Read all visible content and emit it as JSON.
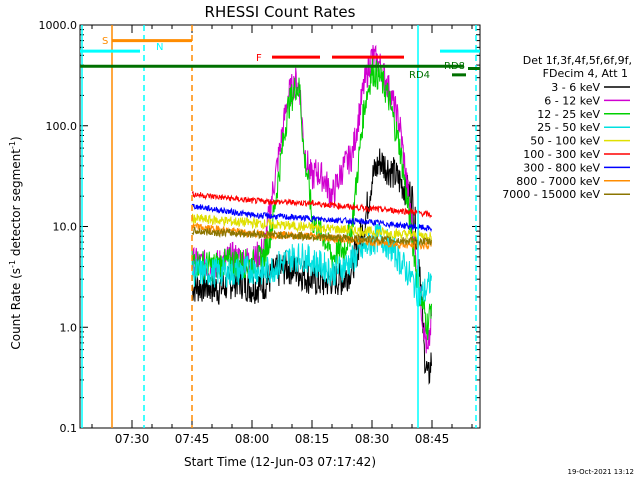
{
  "chart_data": {
    "type": "line",
    "title": "RHESSI Count Rates",
    "xlabel": "Start Time (12-Jun-03 07:17:42)",
    "ylabel_main": "Count Rate (s",
    "ylabel_sup1": "-1",
    "ylabel_mid": " detector segment",
    "ylabel_sup2": "-1",
    "ylabel_end": ")",
    "yscale": "log",
    "ylim": [
      0.1,
      1000
    ],
    "xlim_minutes": [
      17,
      117
    ],
    "x_ticks": [
      {
        "label": "07:30",
        "min": 30
      },
      {
        "label": "07:45",
        "min": 45
      },
      {
        "label": "08:00",
        "min": 60
      },
      {
        "label": "08:15",
        "min": 75
      },
      {
        "label": "08:30",
        "min": 90
      },
      {
        "label": "08:45",
        "min": 105
      }
    ],
    "y_ticks": [
      {
        "label": "1000.0",
        "v": 1000
      },
      {
        "label": "100.0",
        "v": 100
      },
      {
        "label": "10.0",
        "v": 10
      },
      {
        "label": "1.0",
        "v": 1
      },
      {
        "label": "0.1",
        "v": 0.1
      }
    ],
    "legend_header": [
      "Det 1f,3f,4f,5f,6f,9f,",
      "FDecim 4, Att 1"
    ],
    "series": [
      {
        "name": "3 - 6 keV",
        "color": "#000000",
        "x": [
          45,
          48,
          52,
          56,
          60,
          63,
          66,
          69,
          72,
          75,
          78,
          80,
          83,
          85,
          88,
          90,
          92,
          95,
          97,
          100,
          102,
          103,
          104,
          105
        ],
        "y": [
          2.5,
          2.6,
          2.4,
          3.0,
          2.5,
          2.7,
          3.5,
          4,
          3.5,
          3,
          2.8,
          3,
          3,
          4,
          10,
          30,
          45,
          35,
          28,
          20,
          4,
          0.6,
          0.3,
          0.5
        ]
      },
      {
        "name": "6 - 12 keV",
        "color": "#d000d0",
        "x": [
          45,
          50,
          55,
          60,
          63,
          65,
          67,
          69,
          71,
          72,
          73,
          74,
          75,
          76,
          78,
          80,
          83,
          85,
          88,
          90,
          92,
          94,
          97,
          100,
          102,
          103,
          104,
          105
        ],
        "y": [
          4.5,
          4,
          5,
          4.5,
          6,
          20,
          60,
          200,
          280,
          220,
          60,
          40,
          30,
          35,
          30,
          20,
          40,
          50,
          250,
          500,
          400,
          250,
          100,
          10,
          2,
          1,
          0.5,
          1.5
        ]
      },
      {
        "name": "12 - 25 keV",
        "color": "#00d000",
        "x": [
          45,
          50,
          55,
          60,
          63,
          65,
          67,
          69,
          71,
          72,
          73,
          74,
          75,
          76,
          78,
          80,
          83,
          85,
          88,
          90,
          92,
          94,
          97,
          100,
          102,
          103,
          104,
          105
        ],
        "y": [
          4.5,
          4,
          4.5,
          4.2,
          5,
          10,
          40,
          150,
          250,
          220,
          50,
          30,
          12,
          10,
          8,
          5,
          6,
          10,
          150,
          350,
          300,
          200,
          60,
          8,
          2,
          1.5,
          1,
          2
        ]
      },
      {
        "name": "25 - 50 keV",
        "color": "#00e0e0",
        "x": [
          45,
          50,
          55,
          60,
          63,
          66,
          70,
          73,
          75,
          78,
          80,
          83,
          86,
          88,
          90,
          92,
          95,
          98,
          100,
          102,
          104,
          105
        ],
        "y": [
          3.5,
          3.5,
          3.5,
          3.8,
          3.5,
          4,
          5,
          5,
          4.5,
          4,
          3.5,
          4,
          5,
          6,
          7,
          8,
          6,
          4,
          3,
          2,
          2.5,
          3
        ]
      },
      {
        "name": "50 - 100 keV",
        "color": "#e0e000",
        "x": [
          45,
          105
        ],
        "y": [
          12,
          8
        ]
      },
      {
        "name": "100 - 300 keV",
        "color": "#ff0000",
        "x": [
          45,
          60,
          75,
          90,
          100,
          105
        ],
        "y": [
          21,
          18,
          17,
          15,
          14,
          13
        ]
      },
      {
        "name": "300 - 800 keV",
        "color": "#0000ff",
        "x": [
          45,
          60,
          75,
          90,
          100,
          105
        ],
        "y": [
          16,
          13,
          12,
          11,
          10,
          9.5
        ]
      },
      {
        "name": "800 - 7000 keV",
        "color": "#ff8c00",
        "x": [
          45,
          60,
          75,
          90,
          100,
          105
        ],
        "y": [
          10,
          8.5,
          8,
          7,
          6.5,
          6.5
        ]
      },
      {
        "name": "7000 - 15000 keV",
        "color": "#8b7500",
        "x": [
          45,
          105
        ],
        "y": [
          9,
          7
        ]
      }
    ],
    "annotations": {
      "S": {
        "label": "S",
        "color": "#ff8c00",
        "start": 25,
        "end": 45,
        "y": 700,
        "line_min": 25
      },
      "N": {
        "label": "N",
        "color": "#00ffff",
        "start": 17,
        "end": 32,
        "y": 550
      },
      "N_right": {
        "label": "",
        "color": "#00ffff",
        "start": 107,
        "end": 117,
        "y": 550
      },
      "F": {
        "label": "F",
        "color": "#ff0000",
        "segments": [
          [
            65,
            77
          ],
          [
            80,
            98
          ]
        ],
        "y": 480
      },
      "RD_long": {
        "label": "",
        "color": "#007000",
        "start": 17,
        "end": 113,
        "y": 390
      },
      "RD4": {
        "label": "RD4",
        "color": "#007000",
        "start": 110,
        "end": 113.5,
        "y": 320
      },
      "RD8": {
        "label": "RD8",
        "color": "#007000",
        "start": 114,
        "end": 117,
        "y": 370
      }
    },
    "vlines": [
      {
        "min": 17.5,
        "color": "#00ffff",
        "dash": false
      },
      {
        "min": 25,
        "color": "#ff8c00",
        "dash": false
      },
      {
        "min": 33,
        "color": "#00ffff",
        "dash": true
      },
      {
        "min": 45,
        "color": "#ff8c00",
        "dash": true
      },
      {
        "min": 101.5,
        "color": "#00ffff",
        "dash": false
      },
      {
        "min": 116,
        "color": "#00ffff",
        "dash": true
      }
    ]
  },
  "footer": {
    "timestamp": "19-Oct-2021 13:12"
  }
}
